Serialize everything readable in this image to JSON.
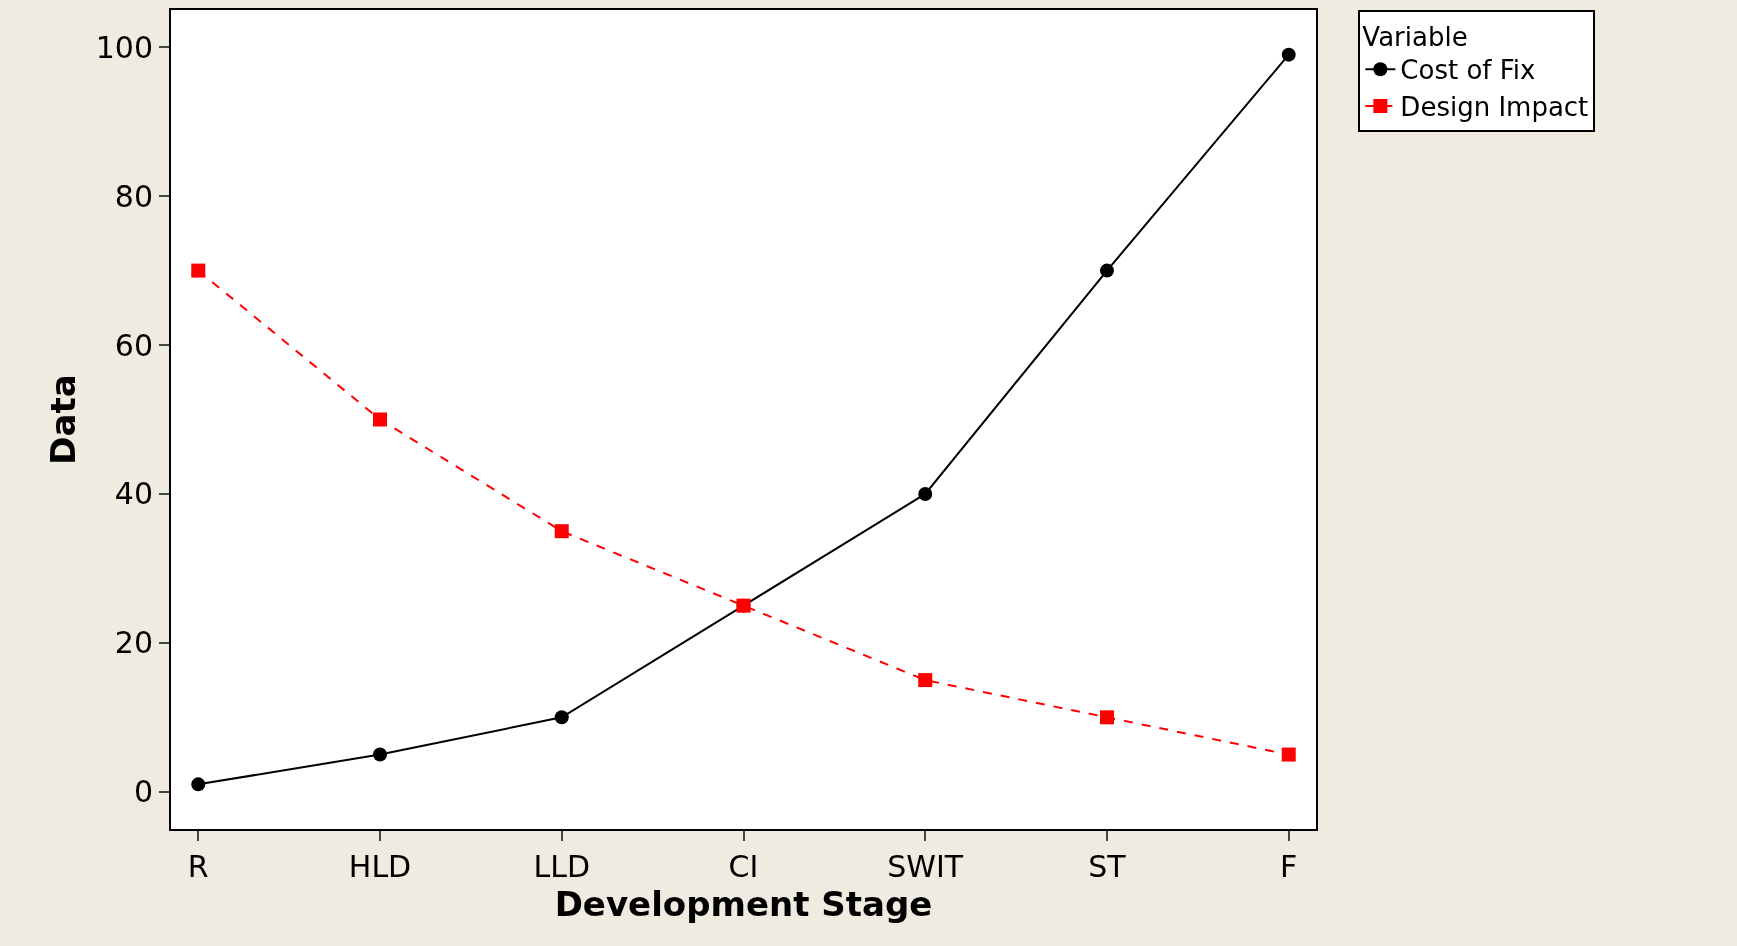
{
  "chart_data": {
    "type": "line",
    "xlabel": "Development Stage",
    "ylabel": "Data",
    "legend_title": "Variable",
    "categories": [
      "R",
      "HLD",
      "LLD",
      "CI",
      "SWIT",
      "ST",
      "F"
    ],
    "series": [
      {
        "name": "Cost of Fix",
        "color": "#000000",
        "values": [
          1,
          5,
          10,
          25,
          40,
          70,
          99
        ],
        "marker": "circle",
        "line_style": "solid"
      },
      {
        "name": "Design Impact",
        "color": "#ff0000",
        "values": [
          70,
          50,
          35,
          25,
          15,
          10,
          5
        ],
        "marker": "square",
        "line_style": "dashed"
      }
    ],
    "ylim": [
      -5,
      105
    ],
    "yticks": [
      0,
      20,
      40,
      60,
      80,
      100
    ],
    "legend": "top right"
  }
}
